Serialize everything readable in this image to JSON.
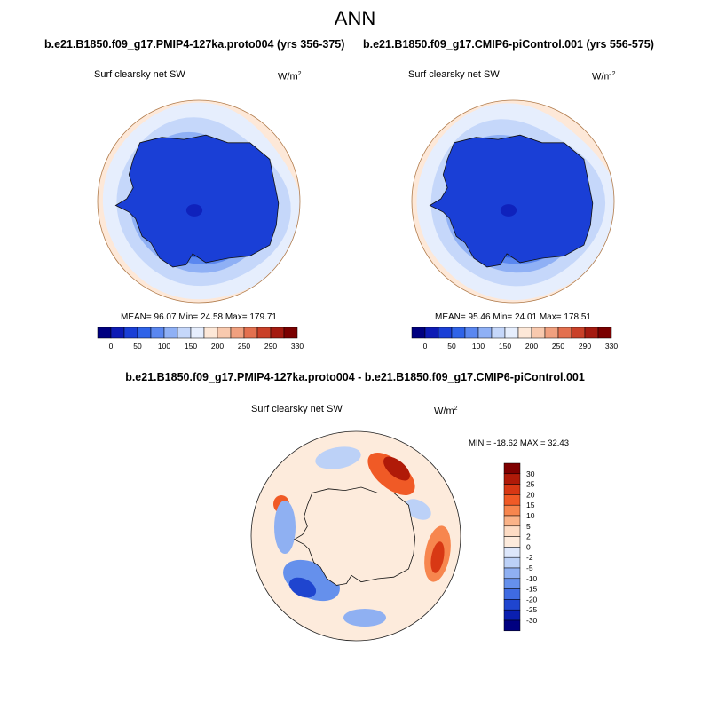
{
  "figure": {
    "title": "ANN"
  },
  "chart_data": [
    {
      "type": "heatmap",
      "projection": "south-polar-stereographic",
      "title": "b.e21.B1850.f09_g17.PMIP4-127ka.proto004 (yrs 356-375)",
      "variable_label": "Surf clearsky net SW",
      "units_base": "W/m",
      "units_exp": "2",
      "stats": {
        "text": "MEAN=  96.07  Min=  24.58  Max= 179.71",
        "mean": 96.07,
        "min": 24.58,
        "max": 179.71
      },
      "colorbar": {
        "orientation": "horizontal",
        "labels": [
          "0",
          "50",
          "100",
          "150",
          "200",
          "250",
          "290",
          "330"
        ],
        "colors": [
          "#000080",
          "#0d1bb5",
          "#1a3fd6",
          "#2f63e8",
          "#5a87f0",
          "#8fb0f5",
          "#c5d7fa",
          "#e6eefd",
          "#fde8d8",
          "#f8c9ae",
          "#f0a07f",
          "#e3704f",
          "#c94028",
          "#a41a10",
          "#7a0000"
        ]
      }
    },
    {
      "type": "heatmap",
      "projection": "south-polar-stereographic",
      "title": "b.e21.B1850.f09_g17.CMIP6-piControl.001 (yrs 556-575)",
      "variable_label": "Surf clearsky net SW",
      "units_base": "W/m",
      "units_exp": "2",
      "stats": {
        "text": "MEAN=  95.46  Min=  24.01  Max= 178.51",
        "mean": 95.46,
        "min": 24.01,
        "max": 178.51
      },
      "colorbar": {
        "orientation": "horizontal",
        "labels": [
          "0",
          "50",
          "100",
          "150",
          "200",
          "250",
          "290",
          "330"
        ],
        "colors": [
          "#000080",
          "#0d1bb5",
          "#1a3fd6",
          "#2f63e8",
          "#5a87f0",
          "#8fb0f5",
          "#c5d7fa",
          "#e6eefd",
          "#fde8d8",
          "#f8c9ae",
          "#f0a07f",
          "#e3704f",
          "#c94028",
          "#a41a10",
          "#7a0000"
        ]
      }
    },
    {
      "type": "heatmap",
      "projection": "south-polar-stereographic",
      "title": "b.e21.B1850.f09_g17.PMIP4-127ka.proto004 - b.e21.B1850.f09_g17.CMIP6-piControl.001",
      "variable_label": "Surf clearsky net SW",
      "units_base": "W/m",
      "units_exp": "2",
      "stats": {
        "text": "MIN = -18.62 MAX =  32.43",
        "min": -18.62,
        "max": 32.43
      },
      "colorbar": {
        "orientation": "vertical",
        "labels": [
          "30",
          "25",
          "20",
          "15",
          "10",
          "5",
          "2",
          "0",
          "-2",
          "-5",
          "-10",
          "-15",
          "-20",
          "-25",
          "-30"
        ],
        "colors": [
          "#7f0000",
          "#b01a08",
          "#d83814",
          "#f05a26",
          "#f7864e",
          "#fab388",
          "#fddcc4",
          "#fdebdc",
          "#dde7fb",
          "#bcd1f7",
          "#8fb0f2",
          "#6590ec",
          "#3f6be2",
          "#1f45cf",
          "#0a1fb0",
          "#000080"
        ]
      }
    }
  ]
}
